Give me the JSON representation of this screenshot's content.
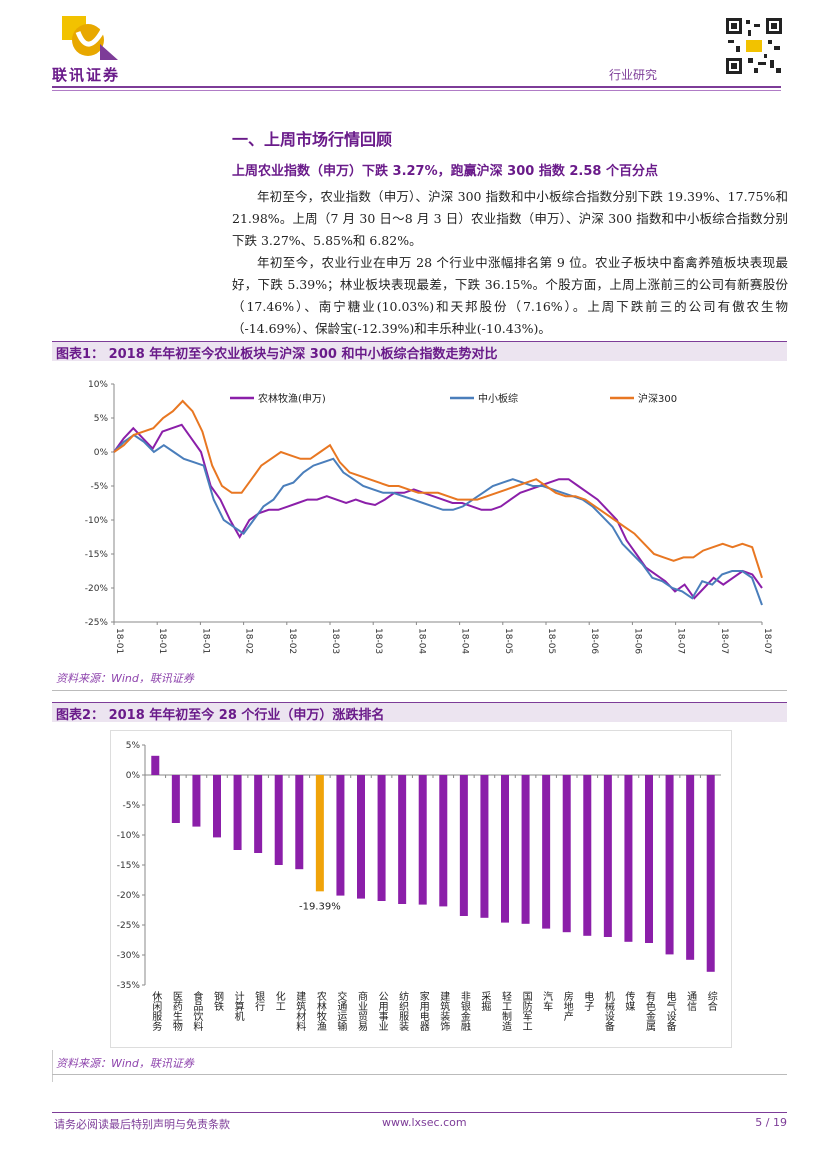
{
  "header": {
    "logo_text": "联讯证券",
    "report_type": "行业研究",
    "brand_color": "#7d3c98"
  },
  "section": {
    "title": "一、上周市场行情回顾",
    "subtitle": "上周农业指数（申万）下跌 3.27%，跑赢沪深 300 指数 2.58 个百分点",
    "paragraphs": [
      "年初至今，农业指数（申万）、沪深 300 指数和中小板综合指数分别下跌 19.39%、17.75%和 21.98%。上周（7 月 30 日～8 月 3 日）农业指数（申万）、沪深 300 指数和中小板综合指数分别下跌 3.27%、5.85%和 6.82%。",
      "年初至今，农业行业在申万 28 个行业中涨幅排名第 9 位。农业子板块中畜禽养殖板块表现最好，下跌 5.39%；林业板块表现最差，下跌 36.15%。个股方面，上周上涨前三的公司有新赛股份（17.46%）、南宁糖业(10.03%)和天邦股份（7.16%）。上周下跌前三的公司有傲农生物（-14.69%）、保龄宝(-12.39%)和丰乐种业(-10.43%)。"
    ]
  },
  "figure1": {
    "title": "图表1：   2018 年年初至今农业板块与沪深 300 和中小板综合指数走势对比",
    "source": "资料来源：Wind，联讯证券"
  },
  "figure2": {
    "title": "图表2：   2018 年年初至今 28 个行业（申万）涨跌排名",
    "source": "资料来源：Wind，联讯证券"
  },
  "chart_data": [
    {
      "type": "line",
      "title": "2018 年年初至今农业板块与沪深 300 和中小板综合指数走势对比",
      "x_ticks": [
        "18-01",
        "18-01",
        "18-01",
        "18-02",
        "18-02",
        "18-03",
        "18-03",
        "18-04",
        "18-04",
        "18-05",
        "18-05",
        "18-06",
        "18-06",
        "18-07",
        "18-07",
        "18-07"
      ],
      "yticks": [
        "10%",
        "5%",
        "0%",
        "-5%",
        "-10%",
        "-15%",
        "-20%",
        "-25%"
      ],
      "ylim": [
        -25,
        10
      ],
      "legend": "top",
      "series": [
        {
          "name": "农林牧渔(申万)",
          "color": "#8b1fa9",
          "values": [
            0,
            2,
            3.5,
            2,
            0.5,
            3,
            3.5,
            4,
            2,
            0,
            -5,
            -7,
            -10,
            -12.5,
            -10,
            -9,
            -8.5,
            -8.5,
            -8,
            -7.5,
            -7,
            -7,
            -6.5,
            -7,
            -7.5,
            -7,
            -7.5,
            -7.8,
            -7,
            -6,
            -6,
            -5.5,
            -6,
            -6.5,
            -7,
            -7.5,
            -7.5,
            -8,
            -8.5,
            -8.5,
            -8,
            -7,
            -6,
            -5.5,
            -5,
            -4.5,
            -4,
            -4,
            -5,
            -6,
            -7,
            -8.5,
            -10,
            -13,
            -15,
            -17,
            -18,
            -19,
            -20.5,
            -19.5,
            -21.5,
            -20,
            -18.5,
            -19.5,
            -18.5,
            -17.5,
            -18,
            -20
          ]
        },
        {
          "name": "中小板综",
          "color": "#4a7ebb",
          "values": [
            0,
            1.5,
            2.5,
            1.5,
            0,
            1,
            0,
            -1,
            -1.5,
            -2,
            -7,
            -10,
            -11,
            -12,
            -10,
            -8,
            -7,
            -5,
            -4.5,
            -3,
            -2,
            -1.5,
            -1,
            -3,
            -4,
            -5,
            -5.5,
            -6,
            -6,
            -6.5,
            -7,
            -7.5,
            -8,
            -8.5,
            -8.5,
            -8,
            -7,
            -6,
            -5,
            -4.5,
            -4,
            -4.5,
            -5,
            -5,
            -5.5,
            -6,
            -6.5,
            -7,
            -8,
            -9.5,
            -11,
            -13.5,
            -15,
            -16.5,
            -18.5,
            -19,
            -20,
            -20.5,
            -21.5,
            -19,
            -19.5,
            -18,
            -17.5,
            -17.5,
            -18.5,
            -22.5
          ]
        },
        {
          "name": "沪深300",
          "color": "#e87722",
          "values": [
            0,
            1,
            2.5,
            3,
            3.5,
            5,
            6,
            7.5,
            6,
            3,
            -2,
            -5,
            -6,
            -6,
            -4,
            -2,
            -1,
            0,
            -0.5,
            -1,
            -1,
            0,
            1,
            -1.5,
            -3,
            -3.5,
            -4,
            -4.5,
            -5,
            -5,
            -5.5,
            -6,
            -6,
            -6,
            -6.5,
            -7,
            -7,
            -7,
            -6.5,
            -6,
            -5.5,
            -5,
            -4.5,
            -4,
            -5,
            -6,
            -6.5,
            -6.5,
            -7,
            -8,
            -9,
            -10,
            -11,
            -12,
            -13.5,
            -15,
            -15.5,
            -16,
            -15.5,
            -15.5,
            -14.5,
            -14,
            -13.5,
            -14,
            -13.5,
            -14,
            -18.5
          ]
        }
      ]
    },
    {
      "type": "bar",
      "title": "2018 年年初至今 28 个行业（申万）涨跌排名",
      "categories": [
        "休闲服务",
        "医药生物",
        "食品饮料",
        "钢铁",
        "计算机",
        "银行",
        "化工",
        "建筑材料",
        "农林牧渔",
        "交通运输",
        "商业贸易",
        "公用事业",
        "纺织服装",
        "家用电器",
        "建筑装饰",
        "非银金融",
        "采掘",
        "轻工制造",
        "国防军工",
        "汽车",
        "房地产",
        "电子",
        "机械设备",
        "传媒",
        "有色金属",
        "电气设备",
        "通信",
        "综合"
      ],
      "values": [
        3.2,
        -8.0,
        -8.6,
        -10.4,
        -12.5,
        -13.0,
        -15.0,
        -15.7,
        -19.39,
        -20.1,
        -20.6,
        -21.0,
        -21.5,
        -21.6,
        -21.9,
        -23.5,
        -23.8,
        -24.6,
        -24.8,
        -25.6,
        -26.2,
        -26.8,
        -27.0,
        -27.8,
        -28.0,
        -29.9,
        -30.8,
        -32.8
      ],
      "highlight": "农林牧渔",
      "highlight_label": "-19.39%",
      "bar_color": "#8b1fa9",
      "highlight_color": "#f0a30a",
      "yticks": [
        "5%",
        "0%",
        "-5%",
        "-10%",
        "-15%",
        "-20%",
        "-25%",
        "-30%",
        "-35%"
      ],
      "ylim": [
        -35,
        5
      ]
    }
  ],
  "footer": {
    "disclaimer": "请务必阅读最后特别声明与免责条款",
    "website": "www.lxsec.com",
    "page": "5 / 19"
  }
}
